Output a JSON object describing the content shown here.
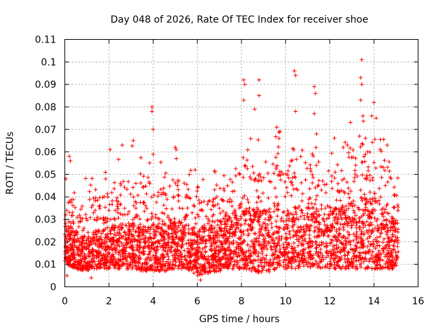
{
  "chart_data": {
    "type": "scatter",
    "title": "Day 048 of 2026, Rate Of TEC Index for receiver shoe",
    "xlabel": "GPS time / hours",
    "ylabel": "ROTI / TECUs",
    "xlim": [
      0,
      16
    ],
    "ylim": [
      0,
      0.11
    ],
    "xticks": [
      "0",
      "2",
      "4",
      "6",
      "8",
      "10",
      "12",
      "14",
      "16"
    ],
    "xtick_values": [
      0,
      2,
      4,
      6,
      8,
      10,
      12,
      14,
      16
    ],
    "yticks": [
      "0",
      "0.01",
      "0.02",
      "0.03",
      "0.04",
      "0.05",
      "0.06",
      "0.07",
      "0.08",
      "0.09",
      "0.1",
      "0.11"
    ],
    "ytick_values": [
      0,
      0.01,
      0.02,
      0.03,
      0.04,
      0.05,
      0.06,
      0.07,
      0.08,
      0.09,
      0.1,
      0.11
    ],
    "grid": true,
    "marker": "+",
    "color": "#ff0000",
    "x_data_end": 15.1,
    "notable_points": [
      {
        "x": 0.2,
        "y": 0.058
      },
      {
        "x": 0.25,
        "y": 0.056
      },
      {
        "x": 2.05,
        "y": 0.061
      },
      {
        "x": 2.6,
        "y": 0.063
      },
      {
        "x": 3.1,
        "y": 0.065
      },
      {
        "x": 3.95,
        "y": 0.08
      },
      {
        "x": 3.95,
        "y": 0.078
      },
      {
        "x": 4.0,
        "y": 0.07
      },
      {
        "x": 5.0,
        "y": 0.062
      },
      {
        "x": 5.05,
        "y": 0.061
      },
      {
        "x": 5.9,
        "y": 0.052
      },
      {
        "x": 8.1,
        "y": 0.092
      },
      {
        "x": 8.15,
        "y": 0.09
      },
      {
        "x": 8.1,
        "y": 0.083
      },
      {
        "x": 8.8,
        "y": 0.092
      },
      {
        "x": 8.8,
        "y": 0.085
      },
      {
        "x": 8.6,
        "y": 0.079
      },
      {
        "x": 9.6,
        "y": 0.071
      },
      {
        "x": 9.7,
        "y": 0.066
      },
      {
        "x": 10.4,
        "y": 0.096
      },
      {
        "x": 10.45,
        "y": 0.094
      },
      {
        "x": 10.45,
        "y": 0.078
      },
      {
        "x": 11.3,
        "y": 0.089
      },
      {
        "x": 11.35,
        "y": 0.086
      },
      {
        "x": 11.3,
        "y": 0.077
      },
      {
        "x": 11.4,
        "y": 0.068
      },
      {
        "x": 12.8,
        "y": 0.063
      },
      {
        "x": 13.45,
        "y": 0.101
      },
      {
        "x": 13.4,
        "y": 0.093
      },
      {
        "x": 13.45,
        "y": 0.09
      },
      {
        "x": 13.4,
        "y": 0.083
      },
      {
        "x": 13.5,
        "y": 0.076
      },
      {
        "x": 14.0,
        "y": 0.082
      },
      {
        "x": 13.9,
        "y": 0.076
      },
      {
        "x": 14.1,
        "y": 0.075
      },
      {
        "x": 14.6,
        "y": 0.063
      },
      {
        "x": 6.15,
        "y": 0.003
      },
      {
        "x": 1.2,
        "y": 0.004
      },
      {
        "x": 0.1,
        "y": 0.005
      }
    ],
    "band_profile": [
      [
        0.0,
        0.01,
        0.03,
        0.04
      ],
      [
        0.5,
        0.008,
        0.025,
        0.038
      ],
      [
        1.0,
        0.007,
        0.022,
        0.036
      ],
      [
        1.5,
        0.008,
        0.026,
        0.044
      ],
      [
        2.0,
        0.008,
        0.027,
        0.042
      ],
      [
        2.5,
        0.008,
        0.028,
        0.048
      ],
      [
        3.0,
        0.008,
        0.029,
        0.056
      ],
      [
        3.5,
        0.007,
        0.027,
        0.045
      ],
      [
        4.0,
        0.007,
        0.028,
        0.048
      ],
      [
        4.5,
        0.007,
        0.026,
        0.042
      ],
      [
        5.0,
        0.008,
        0.03,
        0.05
      ],
      [
        5.5,
        0.008,
        0.028,
        0.046
      ],
      [
        6.0,
        0.005,
        0.026,
        0.04
      ],
      [
        6.5,
        0.006,
        0.027,
        0.04
      ],
      [
        7.0,
        0.007,
        0.03,
        0.046
      ],
      [
        7.5,
        0.008,
        0.033,
        0.048
      ],
      [
        8.0,
        0.008,
        0.036,
        0.058
      ],
      [
        8.5,
        0.007,
        0.035,
        0.056
      ],
      [
        9.0,
        0.006,
        0.034,
        0.055
      ],
      [
        9.5,
        0.007,
        0.035,
        0.06
      ],
      [
        10.0,
        0.008,
        0.034,
        0.055
      ],
      [
        10.5,
        0.008,
        0.036,
        0.062
      ],
      [
        11.0,
        0.009,
        0.036,
        0.06
      ],
      [
        11.5,
        0.008,
        0.036,
        0.058
      ],
      [
        12.0,
        0.008,
        0.034,
        0.052
      ],
      [
        12.5,
        0.008,
        0.036,
        0.058
      ],
      [
        13.0,
        0.008,
        0.038,
        0.062
      ],
      [
        13.5,
        0.008,
        0.04,
        0.068
      ],
      [
        14.0,
        0.008,
        0.04,
        0.066
      ],
      [
        14.5,
        0.008,
        0.036,
        0.058
      ],
      [
        15.1,
        0.008,
        0.028,
        0.04
      ]
    ],
    "background_point_count": 3600
  }
}
